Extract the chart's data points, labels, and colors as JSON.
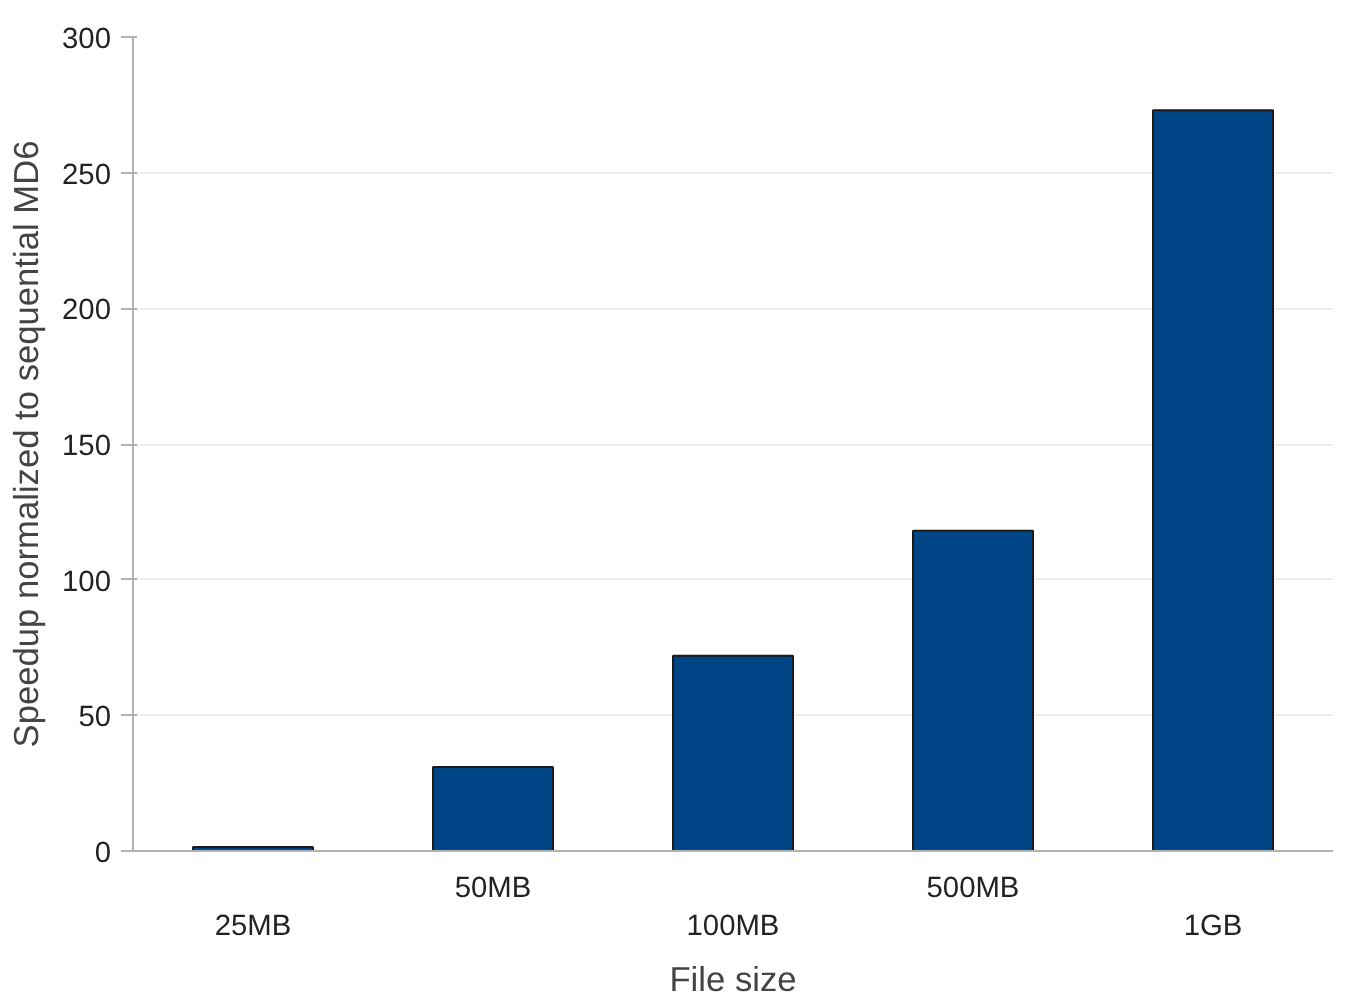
{
  "chart_data": {
    "type": "bar",
    "xlabel": "File size",
    "ylabel": "Speedup normalized to sequential MD6",
    "categories": [
      "25MB",
      "50MB",
      "100MB",
      "500MB",
      "1GB"
    ],
    "values": [
      1.5,
      31,
      72,
      118,
      273
    ],
    "color": "#004586",
    "ylim": [
      0,
      300
    ],
    "yticks": [
      0,
      50,
      100,
      150,
      200,
      250,
      300
    ],
    "grid": "y"
  }
}
